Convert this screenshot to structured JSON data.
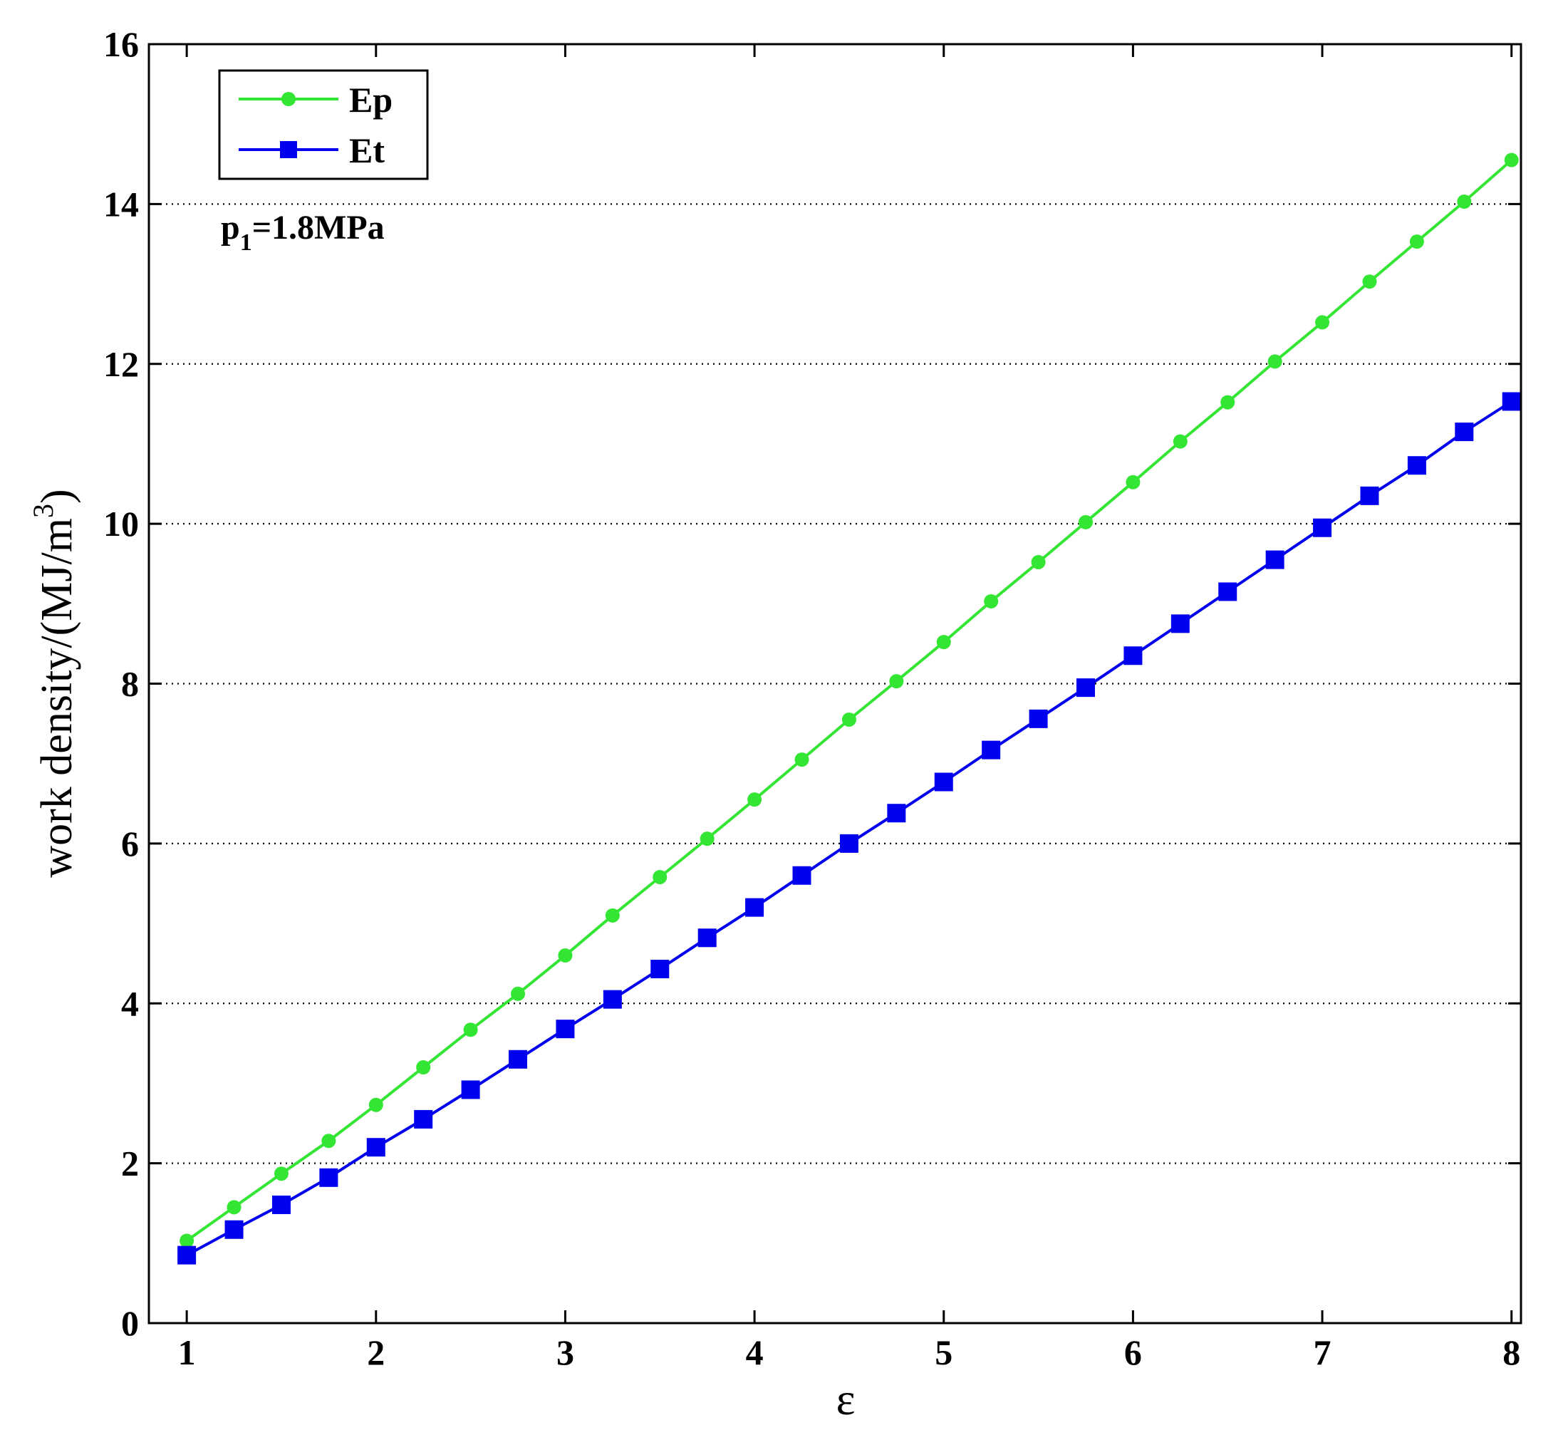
{
  "chart_data": {
    "type": "line",
    "xlabel": "ε",
    "ylabel": {
      "prefix": "work density/(MJ/m",
      "superscript": "3",
      "suffix": ")"
    },
    "xlim": [
      0.8,
      8.05
    ],
    "ylim": [
      0,
      16
    ],
    "xticks": [
      "1",
      "2",
      "3",
      "4",
      "5",
      "6",
      "7",
      "8"
    ],
    "yticks": [
      "0",
      "2",
      "4",
      "6",
      "8",
      "10",
      "12",
      "14",
      "16"
    ],
    "grid": {
      "y_major": true,
      "x_major": false,
      "style": "dotted"
    },
    "legend_position": "top-left",
    "annotation": {
      "main": "p",
      "subscript": "1",
      "rest": "=1.8MPa"
    },
    "x": [
      1,
      1.25,
      1.5,
      1.75,
      2,
      2.25,
      2.5,
      2.75,
      3,
      3.25,
      3.5,
      3.75,
      4,
      4.25,
      4.5,
      4.75,
      5,
      5.25,
      5.5,
      5.75,
      6,
      6.25,
      6.5,
      6.75,
      7,
      7.25,
      7.5,
      7.75,
      8
    ],
    "series": [
      {
        "name": "Ep",
        "color": "#33e633",
        "marker": "circle",
        "values": [
          1.03,
          1.45,
          1.87,
          2.28,
          2.73,
          3.2,
          3.67,
          4.12,
          4.6,
          5.1,
          5.58,
          6.06,
          6.55,
          7.05,
          7.55,
          8.03,
          8.52,
          9.03,
          9.52,
          10.02,
          10.52,
          11.03,
          11.52,
          12.03,
          12.52,
          13.03,
          13.53,
          14.03,
          14.55
        ]
      },
      {
        "name": "Et",
        "color": "#0000ee",
        "marker": "square",
        "values": [
          0.85,
          1.17,
          1.48,
          1.82,
          2.2,
          2.55,
          2.92,
          3.3,
          3.68,
          4.05,
          4.43,
          4.82,
          5.2,
          5.6,
          6.0,
          6.38,
          6.77,
          7.17,
          7.56,
          7.95,
          8.35,
          8.75,
          9.15,
          9.55,
          9.95,
          10.35,
          10.73,
          11.15,
          11.53
        ]
      }
    ]
  }
}
